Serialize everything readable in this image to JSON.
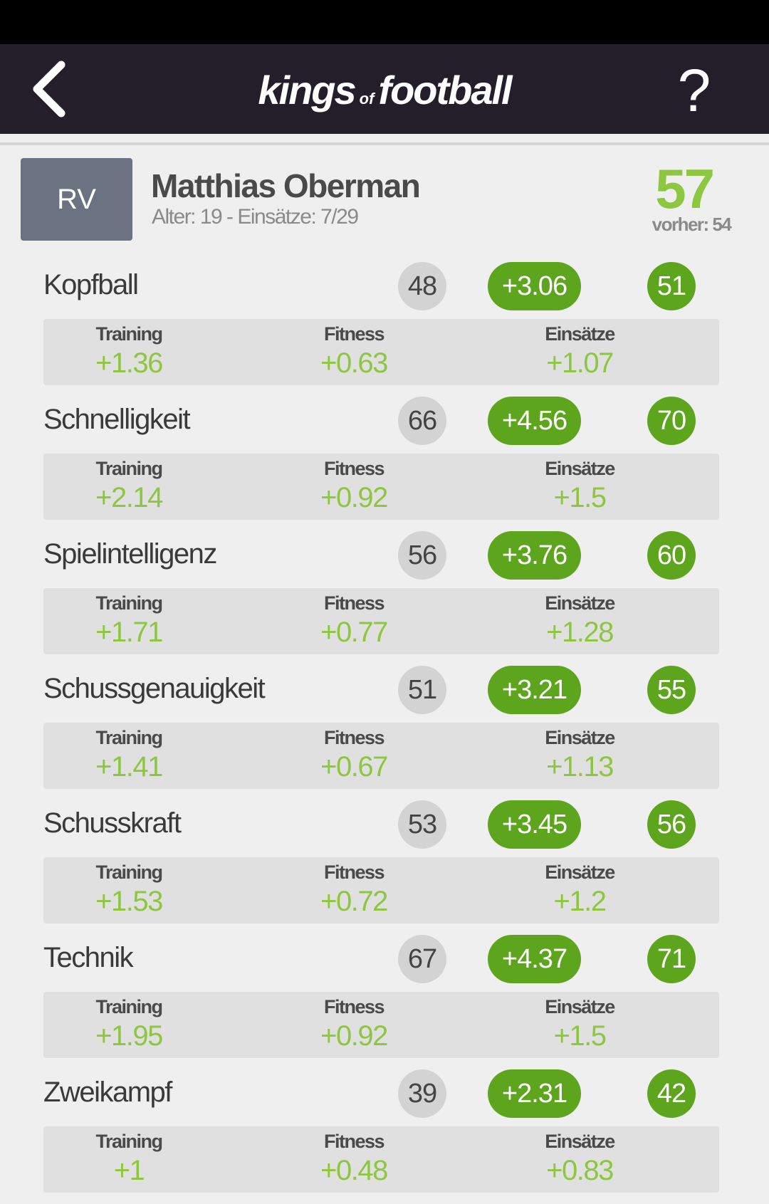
{
  "app": {
    "logo_part1": "kings",
    "logo_part2": "of",
    "logo_part3": "football",
    "help_label": "?",
    "back_icon": "chevron-left-icon"
  },
  "player": {
    "position": "RV",
    "name": "Matthias Oberman",
    "subtitle": "Alter: 19 - Einsätze: 7/29",
    "rating": "57",
    "previous_rating": "vorher: 54"
  },
  "breakdown_labels": {
    "training": "Training",
    "fitness": "Fitness",
    "einsaetze": "Einsätze"
  },
  "skills": [
    {
      "name": "Kopfball",
      "old": "48",
      "delta": "+3.06",
      "new": "51",
      "training": "+1.36",
      "fitness": "+0.63",
      "einsaetze": "+1.07"
    },
    {
      "name": "Schnelligkeit",
      "old": "66",
      "delta": "+4.56",
      "new": "70",
      "training": "+2.14",
      "fitness": "+0.92",
      "einsaetze": "+1.5"
    },
    {
      "name": "Spielintelligenz",
      "old": "56",
      "delta": "+3.76",
      "new": "60",
      "training": "+1.71",
      "fitness": "+0.77",
      "einsaetze": "+1.28"
    },
    {
      "name": "Schussgenauigkeit",
      "old": "51",
      "delta": "+3.21",
      "new": "55",
      "training": "+1.41",
      "fitness": "+0.67",
      "einsaetze": "+1.13"
    },
    {
      "name": "Schusskraft",
      "old": "53",
      "delta": "+3.45",
      "new": "56",
      "training": "+1.53",
      "fitness": "+0.72",
      "einsaetze": "+1.2"
    },
    {
      "name": "Technik",
      "old": "67",
      "delta": "+4.37",
      "new": "71",
      "training": "+1.95",
      "fitness": "+0.92",
      "einsaetze": "+1.5"
    },
    {
      "name": "Zweikampf",
      "old": "39",
      "delta": "+2.31",
      "new": "42",
      "training": "+1",
      "fitness": "+0.48",
      "einsaetze": "+0.83"
    }
  ],
  "colors": {
    "appbar": "#241d2a",
    "accent_green": "#5ea51e",
    "light_green": "#8dc63f",
    "position_badge": "#6b7383"
  }
}
